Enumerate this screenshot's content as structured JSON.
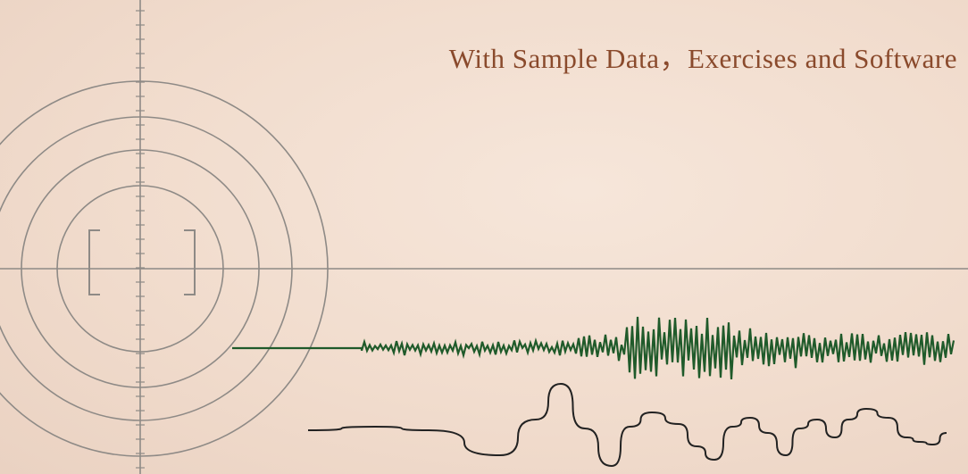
{
  "subtitle": "With Sample Data，Exercises and Software"
}
